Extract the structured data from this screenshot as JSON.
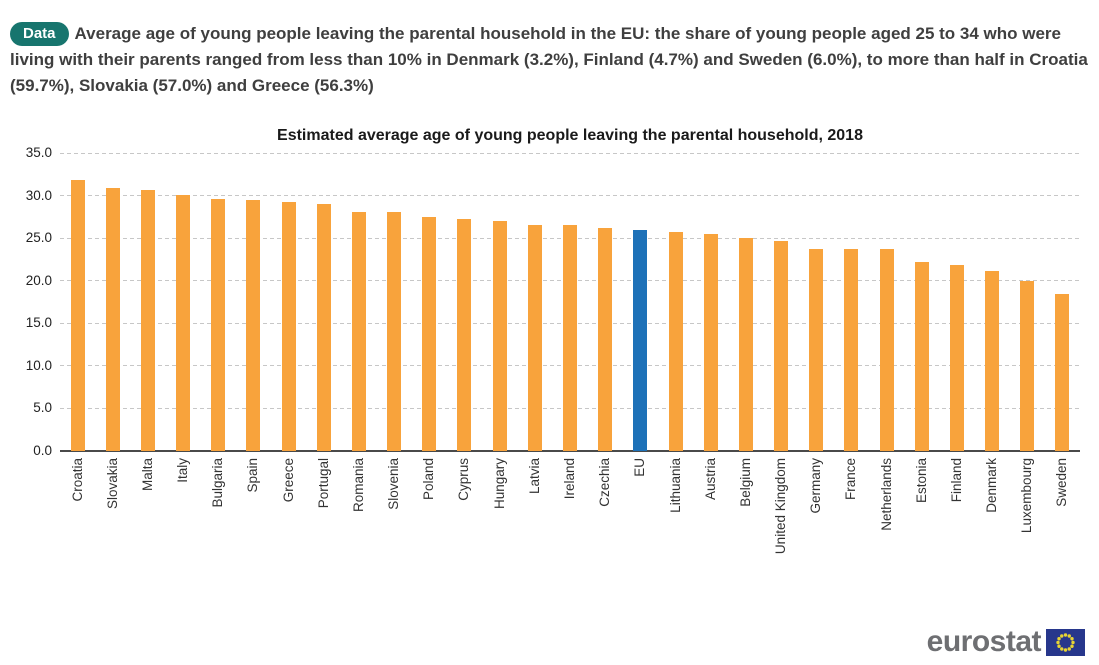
{
  "header": {
    "badge_label": "Data",
    "badge_color": "#17756e",
    "text": "Average age of young people leaving the parental household in the EU: the share of young people aged 25 to 34 who were living with their parents ranged from less than 10% in Denmark (3.2%), Finland (4.7%) and Sweden (6.0%), to more than half in Croatia (59.7%), Slovakia (57.0%) and Greece (56.3%)"
  },
  "chart_data": {
    "type": "bar",
    "title": "Estimated average age of young people leaving the parental household, 2018",
    "categories": [
      "Croatia",
      "Slovakia",
      "Malta",
      "Italy",
      "Bulgaria",
      "Spain",
      "Greece",
      "Portugal",
      "Romania",
      "Slovenia",
      "Poland",
      "Cyprus",
      "Hungary",
      "Latvia",
      "Ireland",
      "Czechia",
      "EU",
      "Lithuania",
      "Austria",
      "Belgium",
      "United Kingdom",
      "Germany",
      "France",
      "Netherlands",
      "Estonia",
      "Finland",
      "Denmark",
      "Luxembourg",
      "Sweden"
    ],
    "values": [
      31.8,
      30.9,
      30.7,
      30.1,
      29.6,
      29.5,
      29.3,
      29.0,
      28.1,
      28.1,
      27.5,
      27.3,
      27.0,
      26.6,
      26.5,
      26.2,
      25.9,
      25.7,
      25.5,
      25.0,
      24.7,
      23.7,
      23.7,
      23.7,
      22.2,
      21.9,
      21.1,
      20.0,
      18.5
    ],
    "highlight_category": "EU",
    "bar_color": "#f8a33c",
    "highlight_color": "#1d71b8",
    "xlabel": "",
    "ylabel": "",
    "ylim": [
      0,
      35
    ],
    "ytick_step": 5,
    "ytick_labels": [
      "0.0",
      "5.0",
      "10.0",
      "15.0",
      "20.0",
      "25.0",
      "30.0",
      "35.0"
    ],
    "grid": "horizontal-dashed",
    "legend": "none",
    "x_label_rotation": 90
  },
  "footer": {
    "logo_text": "eurostat",
    "flag_colors": {
      "field": "#27378c",
      "stars": "#e7d434"
    }
  }
}
